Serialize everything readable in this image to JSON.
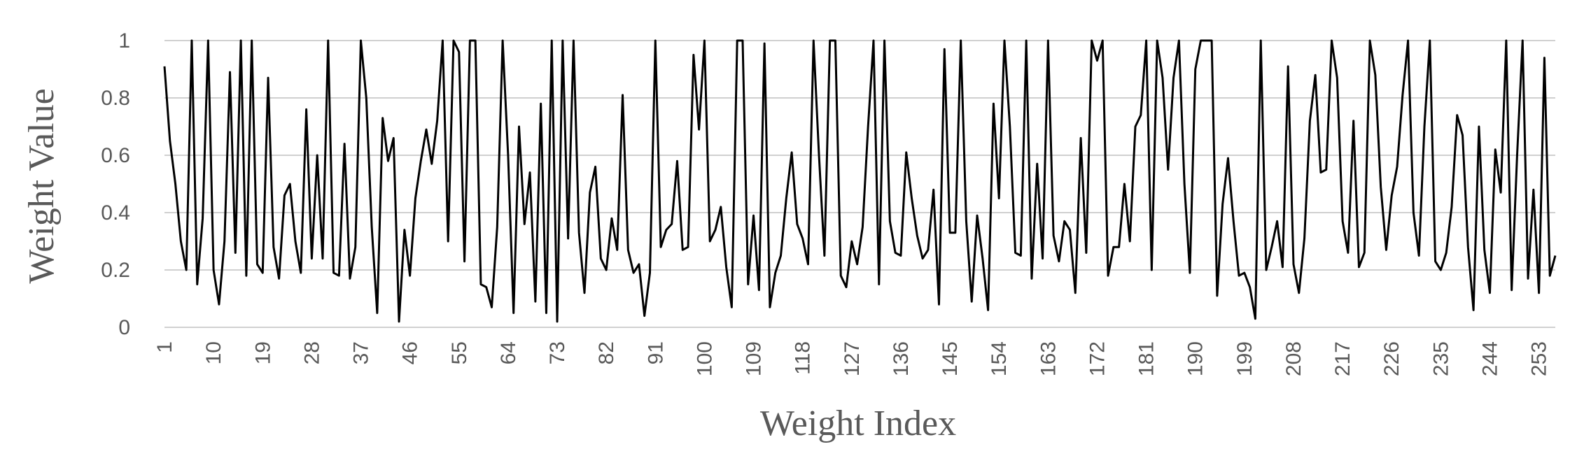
{
  "chart_data": {
    "type": "line",
    "x_label": "Weight Index",
    "y_label": "Weight Value",
    "x": [
      1,
      2,
      3,
      4,
      5,
      6,
      7,
      8,
      9,
      10,
      11,
      12,
      13,
      14,
      15,
      16,
      17,
      18,
      19,
      20,
      21,
      22,
      23,
      24,
      25,
      26,
      27,
      28,
      29,
      30,
      31,
      32,
      33,
      34,
      35,
      36,
      37,
      38,
      39,
      40,
      41,
      42,
      43,
      44,
      45,
      46,
      47,
      48,
      49,
      50,
      51,
      52,
      53,
      54,
      55,
      56,
      57,
      58,
      59,
      60,
      61,
      62,
      63,
      64,
      65,
      66,
      67,
      68,
      69,
      70,
      71,
      72,
      73,
      74,
      75,
      76,
      77,
      78,
      79,
      80,
      81,
      82,
      83,
      84,
      85,
      86,
      87,
      88,
      89,
      90,
      91,
      92,
      93,
      94,
      95,
      96,
      97,
      98,
      99,
      100,
      101,
      102,
      103,
      104,
      105,
      106,
      107,
      108,
      109,
      110,
      111,
      112,
      113,
      114,
      115,
      116,
      117,
      118,
      119,
      120,
      121,
      122,
      123,
      124,
      125,
      126,
      127,
      128,
      129,
      130,
      131,
      132,
      133,
      134,
      135,
      136,
      137,
      138,
      139,
      140,
      141,
      142,
      143,
      144,
      145,
      146,
      147,
      148,
      149,
      150,
      151,
      152,
      153,
      154,
      155,
      156,
      157,
      158,
      159,
      160,
      161,
      162,
      163,
      164,
      165,
      166,
      167,
      168,
      169,
      170,
      171,
      172,
      173,
      174,
      175,
      176,
      177,
      178,
      179,
      180,
      181,
      182,
      183,
      184,
      185,
      186,
      187,
      188,
      189,
      190,
      191,
      192,
      193,
      194,
      195,
      196,
      197,
      198,
      199,
      200,
      201,
      202,
      203,
      204,
      205,
      206,
      207,
      208,
      209,
      210,
      211,
      212,
      213,
      214,
      215,
      216,
      217,
      218,
      219,
      220,
      221,
      222,
      223,
      224,
      225,
      226,
      227,
      228,
      229,
      230,
      231,
      232,
      233,
      234,
      235,
      236,
      237,
      238,
      239,
      240,
      241,
      242,
      243,
      244,
      245,
      246,
      247,
      248,
      249,
      250,
      251,
      252,
      253,
      254,
      255,
      256
    ],
    "values": [
      0.91,
      0.65,
      0.5,
      0.3,
      0.2,
      1,
      0.15,
      0.38,
      1,
      0.2,
      0.08,
      0.3,
      0.89,
      0.26,
      1,
      0.18,
      1,
      0.22,
      0.19,
      0.87,
      0.28,
      0.17,
      0.46,
      0.5,
      0.3,
      0.19,
      0.76,
      0.24,
      0.6,
      0.24,
      1,
      0.19,
      0.18,
      0.64,
      0.17,
      0.28,
      1,
      0.8,
      0.35,
      0.05,
      0.73,
      0.58,
      0.66,
      0.02,
      0.34,
      0.18,
      0.45,
      0.58,
      0.69,
      0.57,
      0.72,
      1,
      0.3,
      1,
      0.96,
      0.23,
      1,
      1,
      0.15,
      0.14,
      0.07,
      0.35,
      1,
      0.6,
      0.05,
      0.7,
      0.36,
      0.54,
      0.09,
      0.78,
      0.05,
      1,
      0.02,
      1,
      0.31,
      1,
      0.33,
      0.12,
      0.47,
      0.56,
      0.24,
      0.2,
      0.38,
      0.27,
      0.81,
      0.27,
      0.19,
      0.22,
      0.04,
      0.19,
      1,
      0.28,
      0.34,
      0.36,
      0.58,
      0.27,
      0.28,
      0.95,
      0.69,
      1,
      0.3,
      0.34,
      0.42,
      0.21,
      0.07,
      1,
      1,
      0.15,
      0.39,
      0.13,
      0.99,
      0.07,
      0.19,
      0.25,
      0.45,
      0.61,
      0.36,
      0.31,
      0.22,
      1,
      0.6,
      0.25,
      1,
      1,
      0.18,
      0.14,
      0.3,
      0.22,
      0.35,
      0.7,
      1,
      0.15,
      1,
      0.37,
      0.26,
      0.25,
      0.61,
      0.45,
      0.32,
      0.24,
      0.27,
      0.48,
      0.08,
      0.97,
      0.33,
      0.33,
      1,
      0.37,
      0.09,
      0.39,
      0.24,
      0.06,
      0.78,
      0.45,
      1,
      0.7,
      0.26,
      0.25,
      1,
      0.17,
      0.57,
      0.24,
      1,
      0.32,
      0.23,
      0.37,
      0.34,
      0.12,
      0.66,
      0.26,
      1,
      0.93,
      1,
      0.18,
      0.28,
      0.28,
      0.5,
      0.3,
      0.7,
      0.74,
      1,
      0.2,
      1,
      0.87,
      0.55,
      0.87,
      1,
      0.5,
      0.19,
      0.9,
      1,
      1,
      1,
      0.11,
      0.43,
      0.59,
      0.37,
      0.18,
      0.19,
      0.14,
      0.03,
      1,
      0.2,
      0.28,
      0.37,
      0.21,
      0.91,
      0.22,
      0.12,
      0.31,
      0.72,
      0.88,
      0.54,
      0.55,
      1,
      0.87,
      0.37,
      0.26,
      0.72,
      0.21,
      0.26,
      1,
      0.88,
      0.49,
      0.27,
      0.46,
      0.56,
      0.81,
      1,
      0.4,
      0.25,
      0.7,
      1,
      0.23,
      0.2,
      0.26,
      0.42,
      0.74,
      0.67,
      0.28,
      0.06,
      0.7,
      0.27,
      0.12,
      0.62,
      0.47,
      1,
      0.13,
      0.6,
      1,
      0.17,
      0.48,
      0.12,
      0.94,
      0.18,
      0.25
    ],
    "color": "#000000",
    "xlim": [
      1,
      256
    ],
    "xticks": [
      1,
      10,
      19,
      28,
      37,
      46,
      55,
      64,
      73,
      82,
      91,
      100,
      109,
      118,
      127,
      136,
      145,
      154,
      163,
      172,
      181,
      190,
      199,
      208,
      217,
      226,
      235,
      244,
      253
    ],
    "ylim": [
      0,
      1
    ],
    "yticks": [
      0,
      0.2,
      0.4,
      0.6,
      0.8,
      1
    ],
    "grid": true
  }
}
